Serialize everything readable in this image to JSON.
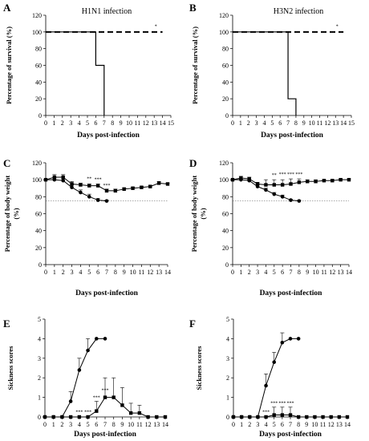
{
  "figure": {
    "panel_letters": [
      "A",
      "B",
      "C",
      "D",
      "E",
      "F"
    ]
  },
  "chart_data": [
    {
      "panel": "A",
      "type": "line",
      "title": "H1N1 infection",
      "xlabel": "Days post-infection",
      "ylabel": "Percentage of survival (%)",
      "xlim": [
        0,
        15
      ],
      "ylim": [
        0,
        120
      ],
      "xticks": [
        0,
        1,
        2,
        3,
        4,
        5,
        6,
        7,
        8,
        9,
        10,
        11,
        12,
        13,
        14,
        15
      ],
      "yticks": [
        0,
        20,
        40,
        60,
        80,
        100,
        120
      ],
      "step": true,
      "series": [
        {
          "style": "solid",
          "x": [
            0,
            6,
            6,
            7,
            7
          ],
          "y": [
            100,
            100,
            60,
            60,
            0
          ]
        },
        {
          "style": "dashed",
          "x": [
            0,
            14
          ],
          "y": [
            100,
            100
          ]
        }
      ],
      "annotations": [
        {
          "text": "*",
          "x": 13.2,
          "y": 103
        }
      ]
    },
    {
      "panel": "B",
      "type": "line",
      "title": "H3N2 infection",
      "xlabel": "Days post-infection",
      "ylabel": "Percentage of survival (%)",
      "xlim": [
        0,
        15
      ],
      "ylim": [
        0,
        120
      ],
      "xticks": [
        0,
        1,
        2,
        3,
        4,
        5,
        6,
        7,
        8,
        9,
        10,
        11,
        12,
        13,
        14,
        15
      ],
      "yticks": [
        0,
        20,
        40,
        60,
        80,
        100,
        120
      ],
      "step": true,
      "series": [
        {
          "style": "solid",
          "x": [
            0,
            7,
            7,
            8,
            8
          ],
          "y": [
            100,
            100,
            20,
            20,
            0
          ]
        },
        {
          "style": "dashed",
          "x": [
            0,
            14
          ],
          "y": [
            100,
            100
          ]
        }
      ],
      "annotations": [
        {
          "text": "*",
          "x": 13.2,
          "y": 103
        }
      ]
    },
    {
      "panel": "C",
      "type": "line",
      "xlabel": "Days post-infection",
      "ylabel": "Percentage of body weight (%)",
      "xlim": [
        0,
        14
      ],
      "ylim": [
        0,
        120
      ],
      "xticks": [
        0,
        1,
        2,
        3,
        4,
        5,
        6,
        7,
        8,
        9,
        10,
        11,
        12,
        13,
        14
      ],
      "yticks": [
        0,
        20,
        40,
        60,
        80,
        100,
        120
      ],
      "reference_line": 75,
      "series": [
        {
          "marker": "circle",
          "x": [
            0,
            1,
            2,
            3,
            4,
            5,
            6,
            7
          ],
          "y": [
            100,
            100,
            99,
            91,
            85,
            80,
            76,
            75
          ],
          "err": [
            0,
            2,
            2,
            3,
            3,
            3,
            2,
            1
          ]
        },
        {
          "marker": "square",
          "x": [
            0,
            1,
            2,
            3,
            4,
            5,
            6,
            7,
            8,
            9,
            10,
            11,
            12,
            13,
            14
          ],
          "y": [
            100,
            103,
            103,
            95,
            94,
            93,
            93,
            87,
            87,
            89,
            90,
            91,
            92,
            96,
            95
          ],
          "err": [
            0,
            3,
            3,
            3,
            2,
            2,
            2,
            2,
            2,
            1,
            1,
            1,
            1,
            2,
            1
          ]
        }
      ],
      "annotations": [
        {
          "text": "**",
          "x": 5,
          "y": 98
        },
        {
          "text": "***",
          "x": 6,
          "y": 97
        },
        {
          "text": "***",
          "x": 7,
          "y": 90
        }
      ]
    },
    {
      "panel": "D",
      "type": "line",
      "xlabel": "Days post-infection",
      "ylabel": "Percentage of body weight (%)",
      "xlim": [
        0,
        14
      ],
      "ylim": [
        0,
        120
      ],
      "xticks": [
        0,
        1,
        2,
        3,
        4,
        5,
        6,
        7,
        8,
        9,
        10,
        11,
        12,
        13,
        14
      ],
      "yticks": [
        0,
        20,
        40,
        60,
        80,
        100,
        120
      ],
      "reference_line": 75,
      "series": [
        {
          "marker": "circle",
          "x": [
            0,
            1,
            2,
            3,
            4,
            5,
            6,
            7,
            8
          ],
          "y": [
            100,
            100,
            99,
            92,
            88,
            83,
            80,
            76,
            75
          ],
          "err": [
            0,
            1,
            1,
            2,
            2,
            2,
            2,
            1,
            1
          ]
        },
        {
          "marker": "square",
          "x": [
            0,
            1,
            2,
            3,
            4,
            5,
            6,
            7,
            8,
            9,
            10,
            11,
            12,
            13,
            14
          ],
          "y": [
            100,
            102,
            101,
            95,
            94,
            94,
            94,
            95,
            97,
            98,
            98,
            99,
            99,
            100,
            100
          ],
          "err": [
            0,
            2,
            2,
            2,
            6,
            6,
            6,
            6,
            4,
            2,
            2,
            1,
            1,
            1,
            1
          ]
        }
      ],
      "annotations": [
        {
          "text": "**",
          "x": 5,
          "y": 102
        },
        {
          "text": "***",
          "x": 6,
          "y": 103
        },
        {
          "text": "***",
          "x": 7,
          "y": 103
        },
        {
          "text": "***",
          "x": 8,
          "y": 103
        }
      ]
    },
    {
      "panel": "E",
      "type": "line",
      "xlabel": "Days post-infection",
      "ylabel": "Sickness scores",
      "xlim": [
        0,
        14
      ],
      "ylim": [
        0,
        5
      ],
      "xticks": [
        0,
        1,
        2,
        3,
        4,
        5,
        6,
        7,
        8,
        9,
        10,
        11,
        12,
        13,
        14
      ],
      "yticks": [
        0,
        1,
        2,
        3,
        4,
        5
      ],
      "series": [
        {
          "marker": "circle",
          "x": [
            0,
            1,
            2,
            3,
            4,
            5,
            6,
            7
          ],
          "y": [
            0,
            0,
            0,
            0.8,
            2.4,
            3.4,
            4,
            4
          ],
          "err": [
            0,
            0,
            0,
            0.5,
            0.6,
            0.6,
            0,
            0
          ]
        },
        {
          "marker": "square",
          "x": [
            0,
            1,
            2,
            3,
            4,
            5,
            6,
            7,
            8,
            9,
            10,
            11,
            12,
            13,
            14
          ],
          "y": [
            0,
            0,
            0,
            0,
            0,
            0,
            0.3,
            1,
            1,
            0.6,
            0.2,
            0.2,
            0,
            0,
            0
          ],
          "err": [
            0,
            0,
            0,
            0,
            0,
            0,
            0.5,
            1,
            1,
            0.9,
            0.5,
            0.4,
            0,
            0,
            0
          ]
        }
      ],
      "annotations": [
        {
          "text": "***",
          "x": 4,
          "y": 0.1
        },
        {
          "text": "***",
          "x": 5,
          "y": 0.1
        },
        {
          "text": "***",
          "x": 6,
          "y": 0.85
        },
        {
          "text": "***",
          "x": 7,
          "y": 1.2
        }
      ]
    },
    {
      "panel": "F",
      "type": "line",
      "xlabel": "Days post-infection",
      "ylabel": "Sickness scores",
      "xlim": [
        0,
        14
      ],
      "ylim": [
        0,
        5
      ],
      "xticks": [
        0,
        1,
        2,
        3,
        4,
        5,
        6,
        7,
        8,
        9,
        10,
        11,
        12,
        13,
        14
      ],
      "yticks": [
        0,
        1,
        2,
        3,
        4,
        5
      ],
      "series": [
        {
          "marker": "circle",
          "x": [
            0,
            1,
            2,
            3,
            4,
            5,
            6,
            7,
            8
          ],
          "y": [
            0,
            0,
            0,
            0,
            1.6,
            2.8,
            3.8,
            4,
            4
          ],
          "err": [
            0,
            0,
            0,
            0,
            0.6,
            0.5,
            0.5,
            0,
            0
          ]
        },
        {
          "marker": "square",
          "x": [
            0,
            1,
            2,
            3,
            4,
            5,
            6,
            7,
            8,
            9,
            10,
            11,
            12,
            13,
            14
          ],
          "y": [
            0,
            0,
            0,
            0,
            0,
            0.1,
            0.1,
            0.1,
            0,
            0,
            0,
            0,
            0,
            0,
            0
          ],
          "err": [
            0,
            0,
            0,
            0,
            0,
            0.4,
            0.4,
            0.4,
            0,
            0,
            0,
            0,
            0,
            0,
            0
          ]
        }
      ],
      "annotations": [
        {
          "text": "***",
          "x": 4,
          "y": 0.1
        },
        {
          "text": "***",
          "x": 5,
          "y": 0.55
        },
        {
          "text": "***",
          "x": 6,
          "y": 0.55
        },
        {
          "text": "***",
          "x": 7,
          "y": 0.55
        }
      ]
    }
  ]
}
